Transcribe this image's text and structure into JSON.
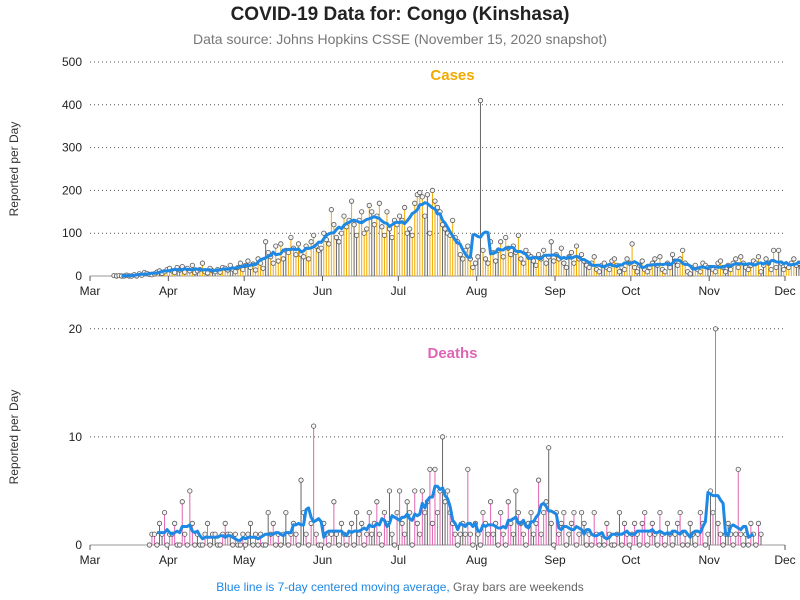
{
  "title": "COVID-19 Data for: Congo (Kinshasa)",
  "subtitle": "Data source: Johns Hopkins CSSE (November 15, 2020 snapshot)",
  "footer": {
    "blue_text": "Blue line is 7-day centered moving average,",
    "gray_text": " Gray bars are weekends"
  },
  "colors": {
    "cases": "#f2a900",
    "deaths": "#e064b4",
    "weekend": "#666666",
    "moving_average": "#1e88e5",
    "grid": "#555555"
  },
  "chart_data": [
    {
      "type": "bar",
      "title": "Cases",
      "ylabel": "Reported per Day",
      "xlabel": "",
      "ylim": [
        0,
        500
      ],
      "yticks": [
        0,
        100,
        200,
        300,
        400,
        500
      ],
      "xlim": [
        "2020-03-01",
        "2020-12-01"
      ],
      "xticks": [
        "Mar",
        "Apr",
        "May",
        "Jun",
        "Jul",
        "Aug",
        "Sep",
        "Oct",
        "Nov",
        "Dec"
      ],
      "grid": "horizontal dotted",
      "start_date": "2020-03-10",
      "values": [
        1,
        0,
        1,
        0,
        0,
        2,
        0,
        0,
        3,
        0,
        5,
        2,
        8,
        6,
        4,
        3,
        5,
        9,
        12,
        6,
        10,
        15,
        18,
        12,
        8,
        20,
        14,
        22,
        9,
        18,
        12,
        25,
        8,
        12,
        15,
        30,
        10,
        7,
        18,
        12,
        10,
        15,
        9,
        20,
        18,
        14,
        25,
        16,
        10,
        20,
        30,
        15,
        25,
        35,
        20,
        28,
        14,
        40,
        30,
        18,
        80,
        55,
        45,
        30,
        70,
        35,
        75,
        40,
        60,
        55,
        90,
        65,
        50,
        75,
        50,
        45,
        70,
        40,
        80,
        95,
        70,
        60,
        65,
        100,
        85,
        75,
        155,
        120,
        90,
        80,
        100,
        140,
        115,
        130,
        175,
        120,
        95,
        130,
        150,
        100,
        110,
        165,
        150,
        120,
        140,
        170,
        115,
        95,
        150,
        110,
        90,
        130,
        120,
        140,
        130,
        160,
        100,
        110,
        95,
        170,
        190,
        195,
        185,
        140,
        190,
        100,
        200,
        175,
        160,
        150,
        120,
        110,
        100,
        95,
        130,
        90,
        80,
        50,
        40,
        60,
        70,
        40,
        20,
        30,
        45,
        410,
        60,
        40,
        30,
        80,
        55,
        35,
        60,
        80,
        45,
        90,
        65,
        50,
        70,
        55,
        95,
        40,
        30,
        60,
        50,
        45,
        35,
        25,
        50,
        40,
        60,
        30,
        45,
        80,
        35,
        50,
        40,
        65,
        30,
        20,
        45,
        55,
        30,
        70,
        40,
        50,
        35,
        25,
        20,
        30,
        45,
        15,
        10,
        25,
        30,
        20,
        15,
        35,
        40,
        25,
        10,
        20,
        15,
        40,
        30,
        75,
        20,
        10,
        25,
        35,
        15,
        10,
        20,
        30,
        40,
        25,
        45,
        15,
        10,
        30,
        20,
        50,
        35,
        25,
        40,
        60,
        30,
        10,
        5,
        20,
        25,
        15,
        10,
        30,
        25,
        20,
        20,
        15,
        10,
        30,
        35,
        20,
        10,
        25,
        15,
        30,
        40,
        20,
        45,
        30,
        20,
        15,
        25,
        35,
        30,
        45,
        10,
        25,
        40,
        30,
        15,
        60,
        20,
        60,
        30,
        15,
        25,
        20,
        30,
        40,
        25,
        30,
        20,
        35,
        45,
        15,
        20,
        30,
        10,
        25,
        30,
        95,
        40,
        20,
        70,
        50,
        30,
        35,
        60,
        20,
        45,
        30,
        40,
        65,
        30,
        20,
        15,
        10,
        35,
        25,
        30,
        40,
        60
      ]
    },
    {
      "type": "bar",
      "title": "Deaths",
      "ylabel": "Reported per Day",
      "xlabel": "",
      "ylim": [
        0,
        21
      ],
      "yticks": [
        0,
        10,
        20
      ],
      "xlim": [
        "2020-03-01",
        "2020-12-01"
      ],
      "xticks": [
        "Mar",
        "Apr",
        "May",
        "Jun",
        "Jul",
        "Aug",
        "Sep",
        "Oct",
        "Nov",
        "Dec"
      ],
      "grid": "horizontal dotted",
      "start_date": "2020-03-24",
      "values": [
        0,
        1,
        1,
        0,
        2,
        1,
        3,
        0,
        1,
        1,
        2,
        0,
        0,
        4,
        1,
        0,
        5,
        2,
        0,
        1,
        0,
        0,
        1,
        2,
        0,
        1,
        1,
        0,
        0,
        1,
        2,
        1,
        1,
        0,
        1,
        0,
        0,
        1,
        0,
        1,
        2,
        0,
        1,
        0,
        1,
        0,
        0,
        3,
        1,
        2,
        0,
        1,
        0,
        1,
        3,
        0,
        1,
        2,
        1,
        0,
        6,
        3,
        1,
        0,
        2,
        11,
        1,
        0,
        0,
        2,
        1,
        0,
        1,
        4,
        1,
        0,
        2,
        1,
        0,
        1,
        2,
        0,
        3,
        1,
        2,
        0,
        1,
        3,
        1,
        2,
        4,
        1,
        0,
        3,
        2,
        5,
        1,
        0,
        3,
        5,
        2,
        1,
        4,
        3,
        0,
        5,
        2,
        1,
        5,
        3,
        4,
        7,
        2,
        7,
        3,
        5,
        10,
        4,
        5,
        3,
        2,
        1,
        0,
        1,
        2,
        1,
        7,
        1,
        0,
        2,
        1,
        0,
        3,
        2,
        1,
        4,
        1,
        2,
        0,
        3,
        1,
        0,
        4,
        2,
        1,
        5,
        3,
        2,
        1,
        0,
        2,
        3,
        1,
        2,
        6,
        1,
        3,
        4,
        9,
        2,
        0,
        3,
        1,
        2,
        3,
        0,
        1,
        2,
        3,
        0,
        1,
        3,
        2,
        0,
        1,
        0,
        3,
        1,
        0,
        1,
        0,
        2,
        1,
        0,
        0,
        1,
        3,
        0,
        2,
        1,
        0,
        1,
        2,
        1,
        0,
        2,
        3,
        0,
        1,
        2,
        1,
        0,
        3,
        1,
        0,
        2,
        1,
        0,
        1,
        2,
        3,
        0,
        1,
        0,
        2,
        1,
        0,
        1,
        3,
        2,
        0,
        1,
        5,
        3,
        20,
        2,
        1,
        0,
        1,
        2,
        1,
        0,
        1,
        7,
        1,
        0,
        1,
        0,
        2,
        1,
        0,
        2,
        1
      ]
    }
  ]
}
